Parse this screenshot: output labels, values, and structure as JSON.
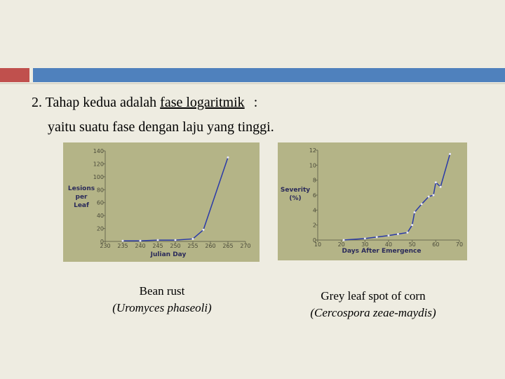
{
  "slide": {
    "line1_prefix": "2. Tahap kedua adalah",
    "line1_underlined": "fase logaritmik",
    "line1_suffix": ":",
    "line2": "yaitu suatu fase dengan laju yang tinggi.",
    "caption1": [
      "Bean rust",
      "(Uromyces phaseoli)"
    ],
    "caption2": [
      "Grey leaf spot of corn",
      "(Cercospora zeae-maydis)"
    ]
  },
  "chart_data": [
    {
      "type": "line",
      "x_label": "Julian Day",
      "y_label": [
        "Lesions",
        "per",
        "Leaf"
      ],
      "x": [
        235,
        240,
        245,
        250,
        255,
        258,
        265
      ],
      "series": [
        {
          "color": "#2a3aa8",
          "values": [
            1,
            1,
            2,
            2,
            4,
            18,
            130
          ]
        }
      ],
      "xlim": [
        230,
        270
      ],
      "xticks": [
        230,
        235,
        240,
        245,
        250,
        255,
        260,
        265,
        270
      ],
      "ylim": [
        0,
        140
      ],
      "yticks": [
        0,
        20,
        40,
        60,
        80,
        100,
        120,
        140
      ]
    },
    {
      "type": "line",
      "x_label": "Days After Emergence",
      "y_label": [
        "Severity",
        "(%)"
      ],
      "x": [
        21,
        30,
        35,
        40,
        44,
        48,
        50,
        51,
        54,
        57,
        59,
        60,
        62,
        66
      ],
      "series": [
        {
          "color": "#2a3aa8",
          "values": [
            0,
            0.2,
            0.4,
            0.6,
            0.8,
            1.0,
            2,
            3.7,
            4.8,
            5.8,
            6,
            7.7,
            7.1,
            11.5
          ]
        }
      ],
      "xlim": [
        10,
        70
      ],
      "xticks": [
        10,
        20,
        30,
        40,
        50,
        60,
        70
      ],
      "ylim": [
        0,
        12
      ],
      "yticks": [
        0,
        2,
        4,
        6,
        8,
        10,
        12
      ]
    }
  ]
}
